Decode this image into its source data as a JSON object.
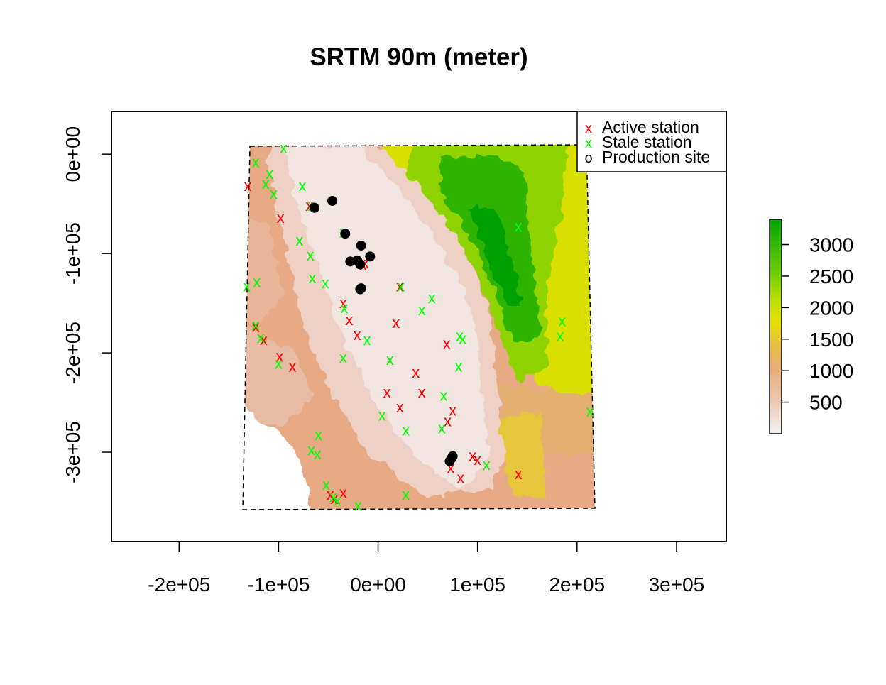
{
  "title": "SRTM 90m (meter)",
  "x_ticks": [
    {
      "value": -200000,
      "label": "-2e+05"
    },
    {
      "value": -100000,
      "label": "-1e+05"
    },
    {
      "value": 0,
      "label": "0e+00"
    },
    {
      "value": 100000,
      "label": "1e+05"
    },
    {
      "value": 200000,
      "label": "2e+05"
    },
    {
      "value": 300000,
      "label": "3e+05"
    }
  ],
  "y_ticks": [
    {
      "value": 0,
      "label": "0e+00"
    },
    {
      "value": -100000,
      "label": "-1e+05"
    },
    {
      "value": -200000,
      "label": "-2e+05"
    },
    {
      "value": -300000,
      "label": "-3e+05"
    }
  ],
  "legend": {
    "position": "top-right",
    "items": [
      {
        "label": "Active station",
        "symbol": "x",
        "color": "#ff0000"
      },
      {
        "label": "Stale station",
        "symbol": "x",
        "color": "#00ff00"
      },
      {
        "label": "Production site",
        "symbol": "o",
        "color": "#000000"
      }
    ]
  },
  "colorbar": {
    "labels": [
      {
        "value": 500,
        "label": "500"
      },
      {
        "value": 1000,
        "label": "1000"
      },
      {
        "value": 1500,
        "label": "1500"
      },
      {
        "value": 2000,
        "label": "2000"
      },
      {
        "value": 2500,
        "label": "2500"
      },
      {
        "value": 3000,
        "label": "3000"
      }
    ]
  },
  "chart_data": {
    "type": "scatter",
    "xlim": [
      -268000,
      350000
    ],
    "ylim": [
      -390000,
      43000
    ],
    "grid": false,
    "colorbar_range": [
      0,
      3400
    ],
    "boundary": [
      [
        -130000,
        7000
      ],
      [
        210000,
        9000
      ],
      [
        215000,
        -355000
      ],
      [
        -137000,
        -358000
      ]
    ],
    "series": [
      {
        "name": "Active station",
        "color": "#ff0000",
        "points": [
          [
            -131000,
            -32000
          ],
          [
            -98000,
            -64000
          ],
          [
            -69000,
            -52000
          ],
          [
            -16000,
            -110000
          ],
          [
            -13000,
            -110000
          ],
          [
            -15000,
            -112000
          ],
          [
            -35000,
            -150000
          ],
          [
            -29000,
            -167000
          ],
          [
            -21000,
            -182000
          ],
          [
            -123000,
            -174000
          ],
          [
            -115000,
            -187000
          ],
          [
            -99000,
            -204000
          ],
          [
            -86000,
            -214000
          ],
          [
            18000,
            -170000
          ],
          [
            22000,
            -133000
          ],
          [
            38000,
            -220000
          ],
          [
            9000,
            -240000
          ],
          [
            44000,
            -240000
          ],
          [
            69000,
            -191000
          ],
          [
            22000,
            -255000
          ],
          [
            75000,
            -258000
          ],
          [
            70000,
            -269000
          ],
          [
            73000,
            -316000
          ],
          [
            83000,
            -326000
          ],
          [
            95000,
            -304000
          ],
          [
            100000,
            -308000
          ],
          [
            141000,
            -322000
          ],
          [
            -48000,
            -343000
          ],
          [
            -35000,
            -341000
          ],
          [
            -44000,
            -347000
          ]
        ]
      },
      {
        "name": "Stale station",
        "color": "#00ff00",
        "points": [
          [
            -95000,
            6000
          ],
          [
            -123000,
            -8000
          ],
          [
            -109000,
            -20000
          ],
          [
            -113000,
            -30000
          ],
          [
            -105000,
            -40000
          ],
          [
            -76000,
            -32000
          ],
          [
            -67000,
            -52000
          ],
          [
            -35000,
            -79000
          ],
          [
            -79000,
            -87000
          ],
          [
            -68000,
            -102000
          ],
          [
            -66000,
            -125000
          ],
          [
            -53000,
            -130000
          ],
          [
            -122000,
            -129000
          ],
          [
            -132000,
            -133000
          ],
          [
            23000,
            -133000
          ],
          [
            54000,
            -145000
          ],
          [
            44000,
            -157000
          ],
          [
            -34000,
            -155000
          ],
          [
            -123000,
            -172000
          ],
          [
            -118000,
            -185000
          ],
          [
            -35000,
            -205000
          ],
          [
            -11000,
            -187000
          ],
          [
            -100000,
            -211000
          ],
          [
            12000,
            -207000
          ],
          [
            81000,
            -214000
          ],
          [
            82000,
            -183000
          ],
          [
            85000,
            -186000
          ],
          [
            141000,
            -73000
          ],
          [
            185000,
            -168000
          ],
          [
            183000,
            -183000
          ],
          [
            213000,
            -259000
          ],
          [
            66000,
            -243000
          ],
          [
            64000,
            -276000
          ],
          [
            28000,
            -278000
          ],
          [
            4000,
            -263000
          ],
          [
            -60000,
            -283000
          ],
          [
            -67000,
            -298000
          ],
          [
            -61000,
            -302000
          ],
          [
            -52000,
            -333000
          ],
          [
            -45000,
            -345000
          ],
          [
            -41000,
            -349000
          ],
          [
            -20000,
            -354000
          ],
          [
            28000,
            -343000
          ],
          [
            109000,
            -313000
          ]
        ]
      },
      {
        "name": "Production site",
        "color": "#000000",
        "points": [
          [
            -64000,
            -54000
          ],
          [
            -46000,
            -47000
          ],
          [
            -33000,
            -80000
          ],
          [
            -17000,
            -92000
          ],
          [
            -8000,
            -103000
          ],
          [
            -28000,
            -108000
          ],
          [
            -21000,
            -107000
          ],
          [
            -18000,
            -111000
          ],
          [
            -17000,
            -135000
          ],
          [
            -18000,
            -136000
          ],
          [
            74000,
            -306000
          ],
          [
            75000,
            -304000
          ],
          [
            72000,
            -309000
          ]
        ]
      }
    ]
  }
}
